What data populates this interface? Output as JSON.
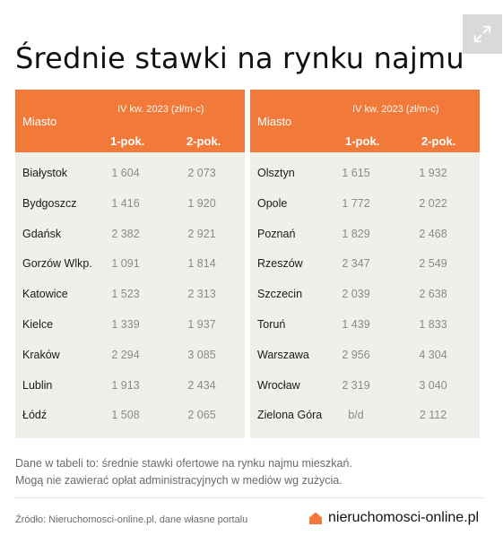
{
  "title": "Średnie stawki na rynku najmu",
  "header": {
    "city_label": "Miasto",
    "period_label": "IV kw. 2023 (zł/m-c)",
    "col1": "1-pok.",
    "col2": "2-pok."
  },
  "left_rows": [
    {
      "city": "Białystok",
      "v1": "1 604",
      "v2": "2 073"
    },
    {
      "city": "Bydgoszcz",
      "v1": "1 416",
      "v2": "1 920"
    },
    {
      "city": "Gdańsk",
      "v1": "2 382",
      "v2": "2 921"
    },
    {
      "city": "Gorzów Wlkp.",
      "v1": "1 091",
      "v2": "1 814"
    },
    {
      "city": "Katowice",
      "v1": "1 523",
      "v2": "2 313"
    },
    {
      "city": "Kielce",
      "v1": "1 339",
      "v2": "1 937"
    },
    {
      "city": "Kraków",
      "v1": "2 294",
      "v2": "3 085"
    },
    {
      "city": "Lublin",
      "v1": "1 913",
      "v2": "2 434"
    },
    {
      "city": "Łódź",
      "v1": "1 508",
      "v2": "2 065"
    }
  ],
  "right_rows": [
    {
      "city": "Olsztyn",
      "v1": "1 615",
      "v2": "1 932"
    },
    {
      "city": "Opole",
      "v1": "1 772",
      "v2": "2 022"
    },
    {
      "city": "Poznań",
      "v1": "1 829",
      "v2": "2 468"
    },
    {
      "city": "Rzeszów",
      "v1": "2 347",
      "v2": "2 549"
    },
    {
      "city": "Szczecin",
      "v1": "2 039",
      "v2": "2 638"
    },
    {
      "city": "Toruń",
      "v1": "1 439",
      "v2": "1 833"
    },
    {
      "city": "Warszawa",
      "v1": "2 956",
      "v2": "4 304"
    },
    {
      "city": "Wrocław",
      "v1": "2 319",
      "v2": "3 040"
    },
    {
      "city": "Zielona Góra",
      "v1": "b/d",
      "v2": "2 112"
    }
  ],
  "note": {
    "line1": "Dane w tabeli to: średnie stawki ofertowe na rynku najmu mieszkań.",
    "line2": "Mogą nie zawierać opłat administracyjnych w mediów wg zużycia."
  },
  "source": "Źródło: Nieruchomosci-online.pl, dane własne portalu",
  "brand": "nieruchomosci-online.pl",
  "colors": {
    "header": "#f17a3b",
    "table_bg": "#f1efea"
  },
  "icons": {
    "expand": "expand-icon",
    "brand": "house-icon"
  }
}
